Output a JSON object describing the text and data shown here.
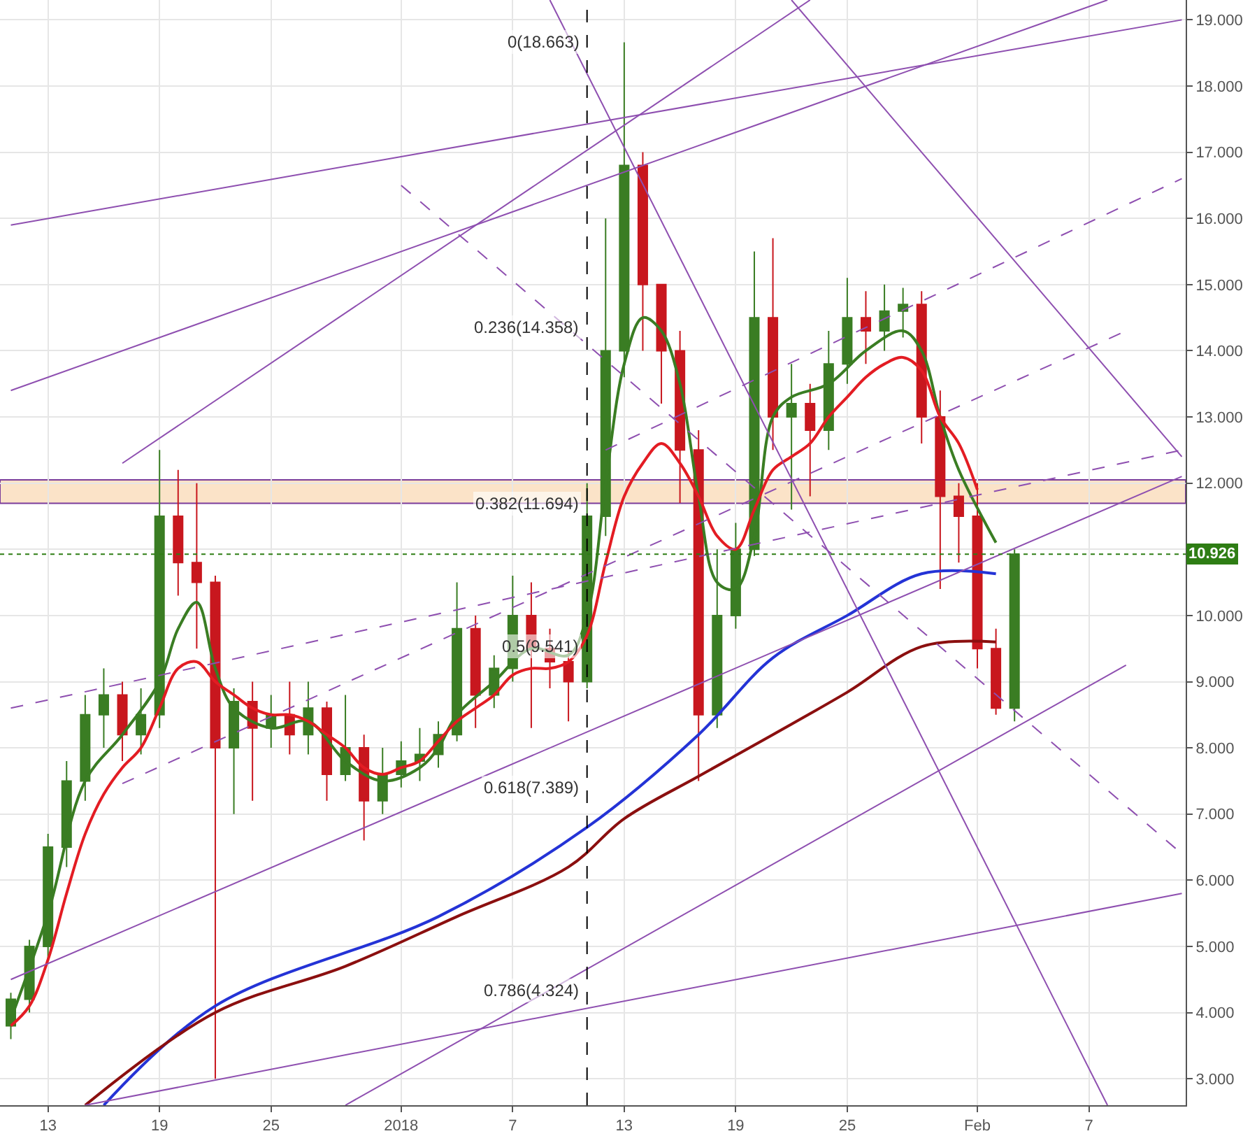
{
  "chart_data": {
    "type": "candlestick",
    "x": [
      "2017-12-11",
      "2017-12-12",
      "2017-12-13",
      "2017-12-14",
      "2017-12-15",
      "2017-12-16",
      "2017-12-17",
      "2017-12-18",
      "2017-12-19",
      "2017-12-20",
      "2017-12-21",
      "2017-12-22",
      "2017-12-23",
      "2017-12-24",
      "2017-12-25",
      "2017-12-26",
      "2017-12-27",
      "2017-12-28",
      "2017-12-29",
      "2017-12-30",
      "2017-12-31",
      "2018-01-01",
      "2018-01-02",
      "2018-01-03",
      "2018-01-04",
      "2018-01-05",
      "2018-01-06",
      "2018-01-07",
      "2018-01-08",
      "2018-01-09",
      "2018-01-10",
      "2018-01-11",
      "2018-01-12",
      "2018-01-13",
      "2018-01-14",
      "2018-01-15",
      "2018-01-16",
      "2018-01-17",
      "2018-01-18",
      "2018-01-19",
      "2018-01-20",
      "2018-01-21",
      "2018-01-22",
      "2018-01-23",
      "2018-01-24",
      "2018-01-25",
      "2018-01-26",
      "2018-01-27",
      "2018-01-28",
      "2018-01-29",
      "2018-01-30",
      "2018-01-31",
      "2018-02-01",
      "2018-02-02",
      "2018-02-03"
    ],
    "ohlc": [
      [
        3.8,
        4.3,
        3.6,
        4.2
      ],
      [
        4.2,
        5.1,
        4.0,
        5.0
      ],
      [
        5.0,
        6.7,
        4.8,
        6.5
      ],
      [
        6.5,
        7.8,
        6.2,
        7.5
      ],
      [
        7.5,
        8.8,
        7.2,
        8.5
      ],
      [
        8.5,
        9.2,
        8.0,
        8.8
      ],
      [
        8.8,
        9.0,
        7.8,
        8.2
      ],
      [
        8.2,
        8.9,
        7.9,
        8.5
      ],
      [
        8.5,
        12.5,
        8.3,
        11.5
      ],
      [
        11.5,
        12.2,
        10.3,
        10.8
      ],
      [
        10.8,
        12.0,
        9.5,
        10.5
      ],
      [
        10.5,
        10.6,
        3.0,
        8.0
      ],
      [
        8.0,
        8.9,
        7.0,
        8.7
      ],
      [
        8.7,
        9.0,
        7.2,
        8.3
      ],
      [
        8.3,
        8.8,
        8.0,
        8.5
      ],
      [
        8.5,
        9.0,
        7.9,
        8.2
      ],
      [
        8.2,
        9.0,
        7.9,
        8.6
      ],
      [
        8.6,
        8.7,
        7.2,
        7.6
      ],
      [
        7.6,
        8.8,
        7.5,
        8.0
      ],
      [
        8.0,
        8.2,
        6.6,
        7.2
      ],
      [
        7.2,
        8.0,
        7.0,
        7.6
      ],
      [
        7.6,
        8.1,
        7.4,
        7.8
      ],
      [
        7.8,
        8.3,
        7.5,
        7.9
      ],
      [
        7.9,
        8.4,
        7.7,
        8.2
      ],
      [
        8.2,
        10.5,
        8.1,
        9.8
      ],
      [
        9.8,
        10.0,
        8.3,
        8.8
      ],
      [
        8.8,
        9.4,
        8.6,
        9.2
      ],
      [
        9.2,
        10.6,
        9.0,
        10.0
      ],
      [
        10.0,
        10.5,
        8.3,
        9.5
      ],
      [
        9.5,
        9.8,
        8.9,
        9.3
      ],
      [
        9.3,
        9.5,
        8.4,
        9.0
      ],
      [
        9.0,
        12.0,
        8.9,
        11.5
      ],
      [
        11.5,
        16.0,
        11.2,
        14.0
      ],
      [
        14.0,
        18.66,
        13.6,
        16.8
      ],
      [
        16.8,
        17.0,
        14.0,
        15.0
      ],
      [
        15.0,
        15.0,
        13.2,
        14.0
      ],
      [
        14.0,
        14.3,
        11.7,
        12.5
      ],
      [
        12.5,
        12.8,
        7.5,
        8.5
      ],
      [
        8.5,
        11.0,
        8.3,
        10.0
      ],
      [
        10.0,
        11.4,
        9.8,
        11.0
      ],
      [
        11.0,
        15.5,
        10.9,
        14.5
      ],
      [
        14.5,
        15.7,
        12.5,
        13.0
      ],
      [
        13.0,
        13.8,
        11.6,
        13.2
      ],
      [
        13.2,
        13.5,
        11.8,
        12.8
      ],
      [
        12.8,
        14.3,
        12.5,
        13.8
      ],
      [
        13.8,
        15.1,
        13.5,
        14.5
      ],
      [
        14.5,
        14.9,
        13.8,
        14.3
      ],
      [
        14.3,
        15.0,
        14.0,
        14.6
      ],
      [
        14.6,
        14.95,
        14.2,
        14.7
      ],
      [
        14.7,
        14.9,
        12.6,
        13.0
      ],
      [
        13.0,
        13.4,
        10.4,
        11.8
      ],
      [
        11.8,
        12.0,
        10.8,
        11.5
      ],
      [
        11.5,
        12.0,
        9.2,
        9.5
      ],
      [
        9.5,
        9.8,
        8.5,
        8.6
      ],
      [
        8.6,
        11.0,
        8.4,
        10.926
      ]
    ],
    "series": [
      {
        "type": "line",
        "color": "#3a7d23",
        "x": [
          "2017-12-11",
          "2017-12-13",
          "2017-12-15",
          "2017-12-17",
          "2017-12-19",
          "2017-12-20",
          "2017-12-21",
          "2017-12-22",
          "2017-12-23",
          "2017-12-25",
          "2017-12-27",
          "2017-12-29",
          "2017-12-31",
          "2018-01-02",
          "2018-01-03",
          "2018-01-04",
          "2018-01-06",
          "2018-01-08",
          "2018-01-10",
          "2018-01-11",
          "2018-01-12",
          "2018-01-13",
          "2018-01-14",
          "2018-01-15",
          "2018-01-16",
          "2018-01-17",
          "2018-01-18",
          "2018-01-19",
          "2018-01-20",
          "2018-01-21",
          "2018-01-22",
          "2018-01-24",
          "2018-01-26",
          "2018-01-28",
          "2018-01-29",
          "2018-01-30",
          "2018-01-31",
          "2018-02-02"
        ],
        "values": [
          3.9,
          5.5,
          7.5,
          8.2,
          9.0,
          9.8,
          10.2,
          9.2,
          8.6,
          8.3,
          8.4,
          7.8,
          7.5,
          7.7,
          8.0,
          8.5,
          9.0,
          9.5,
          9.4,
          10.0,
          12.0,
          13.8,
          14.5,
          14.3,
          13.5,
          11.8,
          10.5,
          10.4,
          11.2,
          13.0,
          13.3,
          13.5,
          14.0,
          14.3,
          14.0,
          13.0,
          12.2,
          11.1
        ]
      },
      {
        "type": "line",
        "color": "#e31c23",
        "x": [
          "2017-12-11",
          "2017-12-12",
          "2017-12-13",
          "2017-12-14",
          "2017-12-15",
          "2017-12-16",
          "2017-12-17",
          "2017-12-18",
          "2017-12-19",
          "2017-12-20",
          "2017-12-21",
          "2017-12-22",
          "2017-12-23",
          "2017-12-24",
          "2017-12-25",
          "2017-12-26",
          "2017-12-27",
          "2017-12-28",
          "2017-12-29",
          "2017-12-30",
          "2017-12-31",
          "2018-01-01",
          "2018-01-02",
          "2018-01-03",
          "2018-01-04",
          "2018-01-05",
          "2018-01-06",
          "2018-01-07",
          "2018-01-08",
          "2018-01-09",
          "2018-01-10",
          "2018-01-11",
          "2018-01-12",
          "2018-01-13",
          "2018-01-14",
          "2018-01-15",
          "2018-01-16",
          "2018-01-17",
          "2018-01-18",
          "2018-01-19",
          "2018-01-20",
          "2018-01-21",
          "2018-01-22",
          "2018-01-23",
          "2018-01-24",
          "2018-01-25",
          "2018-01-26",
          "2018-01-27",
          "2018-01-28",
          "2018-01-29",
          "2018-01-30",
          "2018-01-31",
          "2018-02-01"
        ],
        "values": [
          3.8,
          4.1,
          4.8,
          5.8,
          6.7,
          7.3,
          7.7,
          8.0,
          8.6,
          9.2,
          9.3,
          9.0,
          8.8,
          8.6,
          8.5,
          8.5,
          8.4,
          8.2,
          8.0,
          7.7,
          7.6,
          7.7,
          7.8,
          8.1,
          8.4,
          8.6,
          8.8,
          9.1,
          9.2,
          9.2,
          9.3,
          9.7,
          10.8,
          11.8,
          12.3,
          12.6,
          12.3,
          11.8,
          11.2,
          11.0,
          11.6,
          12.2,
          12.4,
          12.6,
          13.0,
          13.3,
          13.6,
          13.8,
          13.9,
          13.7,
          13.0,
          12.6,
          11.9
        ]
      },
      {
        "type": "line",
        "color": "#2433d6",
        "x": [
          "2017-12-16",
          "2017-12-22",
          "2018-01-03",
          "2018-01-11",
          "2018-01-17",
          "2018-01-21",
          "2018-01-25",
          "2018-01-29",
          "2018-02-02"
        ],
        "values": [
          2.6,
          4.1,
          5.45,
          6.8,
          8.2,
          9.36,
          10.0,
          10.63,
          10.63
        ]
      },
      {
        "type": "line",
        "color": "#8b0f0f",
        "x": [
          "2017-12-15",
          "2017-12-22",
          "2017-12-29",
          "2018-01-04",
          "2018-01-10",
          "2018-01-13",
          "2018-01-17",
          "2018-01-21",
          "2018-01-25",
          "2018-01-29",
          "2018-02-02"
        ],
        "values": [
          2.6,
          4.0,
          4.7,
          5.45,
          6.2,
          6.93,
          7.57,
          8.2,
          8.84,
          9.53,
          9.6
        ]
      },
      {
        "type": "line",
        "color": "#8e4fb0",
        "x": [
          "2017-12-11",
          "2018-02-12"
        ],
        "values": [
          15.9,
          19.0
        ]
      },
      {
        "type": "line",
        "color": "#8e4fb0",
        "x": [
          "2017-12-11",
          "2018-02-08"
        ],
        "values": [
          13.4,
          19.3
        ]
      },
      {
        "type": "line",
        "color": "#8e4fb0",
        "x": [
          "2017-12-17",
          "2018-01-23"
        ],
        "values": [
          12.3,
          19.3
        ]
      },
      {
        "type": "line",
        "color": "#8e4fb0",
        "x": [
          "2018-01-09",
          "2018-02-08"
        ],
        "values": [
          19.3,
          2.6
        ]
      },
      {
        "type": "line",
        "color": "#8e4fb0",
        "x": [
          "2018-01-22",
          "2018-02-12"
        ],
        "values": [
          19.3,
          12.4
        ]
      },
      {
        "type": "line",
        "color": "#8e4fb0",
        "x": [
          "2017-12-11",
          "2018-02-12"
        ],
        "values": [
          4.5,
          12.1
        ]
      },
      {
        "type": "line",
        "color": "#8e4fb0",
        "x": [
          "2017-12-29",
          "2018-02-09"
        ],
        "values": [
          2.6,
          9.25
        ]
      },
      {
        "type": "line",
        "color": "#8e4fb0",
        "x": [
          "2017-12-15",
          "2018-02-12"
        ],
        "values": [
          2.6,
          5.8
        ]
      },
      {
        "type": "line",
        "color": "#8e4fb0",
        "line_style": "dashed",
        "x": [
          "2017-12-11",
          "2018-02-12"
        ],
        "values": [
          8.6,
          12.5
        ]
      },
      {
        "type": "line",
        "color": "#8e4fb0",
        "line_style": "dashed",
        "x": [
          "2017-12-17",
          "2018-02-09"
        ],
        "values": [
          7.46,
          14.3
        ]
      },
      {
        "type": "line",
        "color": "#8e4fb0",
        "line_style": "dashed",
        "x": [
          "2018-01-12",
          "2018-02-12"
        ],
        "values": [
          12.5,
          16.6
        ]
      },
      {
        "type": "line",
        "color": "#8e4fb0",
        "line_style": "dashed",
        "x": [
          "2018-01-01",
          "2018-02-12"
        ],
        "values": [
          16.5,
          6.4
        ]
      }
    ],
    "annotations": [
      {
        "text": "0(18.663)",
        "x": "2018-01-11",
        "y": 18.663
      },
      {
        "text": "0.236(14.358)",
        "x": "2018-01-11",
        "y": 14.358
      },
      {
        "text": "0.382(11.694)",
        "x": "2018-01-11",
        "y": 11.694
      },
      {
        "text": "0.5(9.541)",
        "x": "2018-01-11",
        "y": 9.541
      },
      {
        "text": "0.618(7.389)",
        "x": "2018-01-11",
        "y": 7.389
      },
      {
        "text": "0.786(4.324)",
        "x": "2018-01-11",
        "y": 4.324
      }
    ],
    "ref_lines": [
      {
        "axis": "x",
        "value": "2018-01-11",
        "color": "#000000",
        "line_style": "dashed"
      },
      {
        "axis": "y",
        "value": 10.926,
        "label": "10.926",
        "color": "#2e7d14",
        "line_style": "dotted"
      }
    ],
    "bands": [
      {
        "axis": "y",
        "from": 11.694,
        "to": 12.05,
        "color": "#fbe3c8"
      }
    ],
    "xlim": [
      "2017-12-10T10:00",
      "2018-02-12T05:00"
    ],
    "xticks": [
      {
        "value": "2017-12-13",
        "label": "13"
      },
      {
        "value": "2017-12-19",
        "label": "19"
      },
      {
        "value": "2017-12-25",
        "label": "25"
      },
      {
        "value": "2018-01-01",
        "label": "2018"
      },
      {
        "value": "2018-01-07",
        "label": "7"
      },
      {
        "value": "2018-01-13",
        "label": "13"
      },
      {
        "value": "2018-01-19",
        "label": "19"
      },
      {
        "value": "2018-01-25",
        "label": "25"
      },
      {
        "value": "2018-02-01",
        "label": "Feb"
      },
      {
        "value": "2018-02-07",
        "label": "7"
      }
    ],
    "ylim": [
      2.6,
      19.3
    ],
    "yticks": [
      {
        "value": 3,
        "label": "3.000"
      },
      {
        "value": 4,
        "label": "4.000"
      },
      {
        "value": 5,
        "label": "5.000"
      },
      {
        "value": 6,
        "label": "6.000"
      },
      {
        "value": 7,
        "label": "7.000"
      },
      {
        "value": 8,
        "label": "8.000"
      },
      {
        "value": 9,
        "label": "9.000"
      },
      {
        "value": 10,
        "label": "10.000"
      },
      {
        "value": 11,
        "label": null
      },
      {
        "value": 12,
        "label": "12.000"
      },
      {
        "value": 13,
        "label": "13.000"
      },
      {
        "value": 14,
        "label": "14.000"
      },
      {
        "value": 15,
        "label": "15.000"
      },
      {
        "value": 16,
        "label": "16.000"
      },
      {
        "value": 17,
        "label": "17.000"
      },
      {
        "value": 18,
        "label": "18.000"
      },
      {
        "value": 19,
        "label": "19.000"
      }
    ],
    "grid": true
  }
}
